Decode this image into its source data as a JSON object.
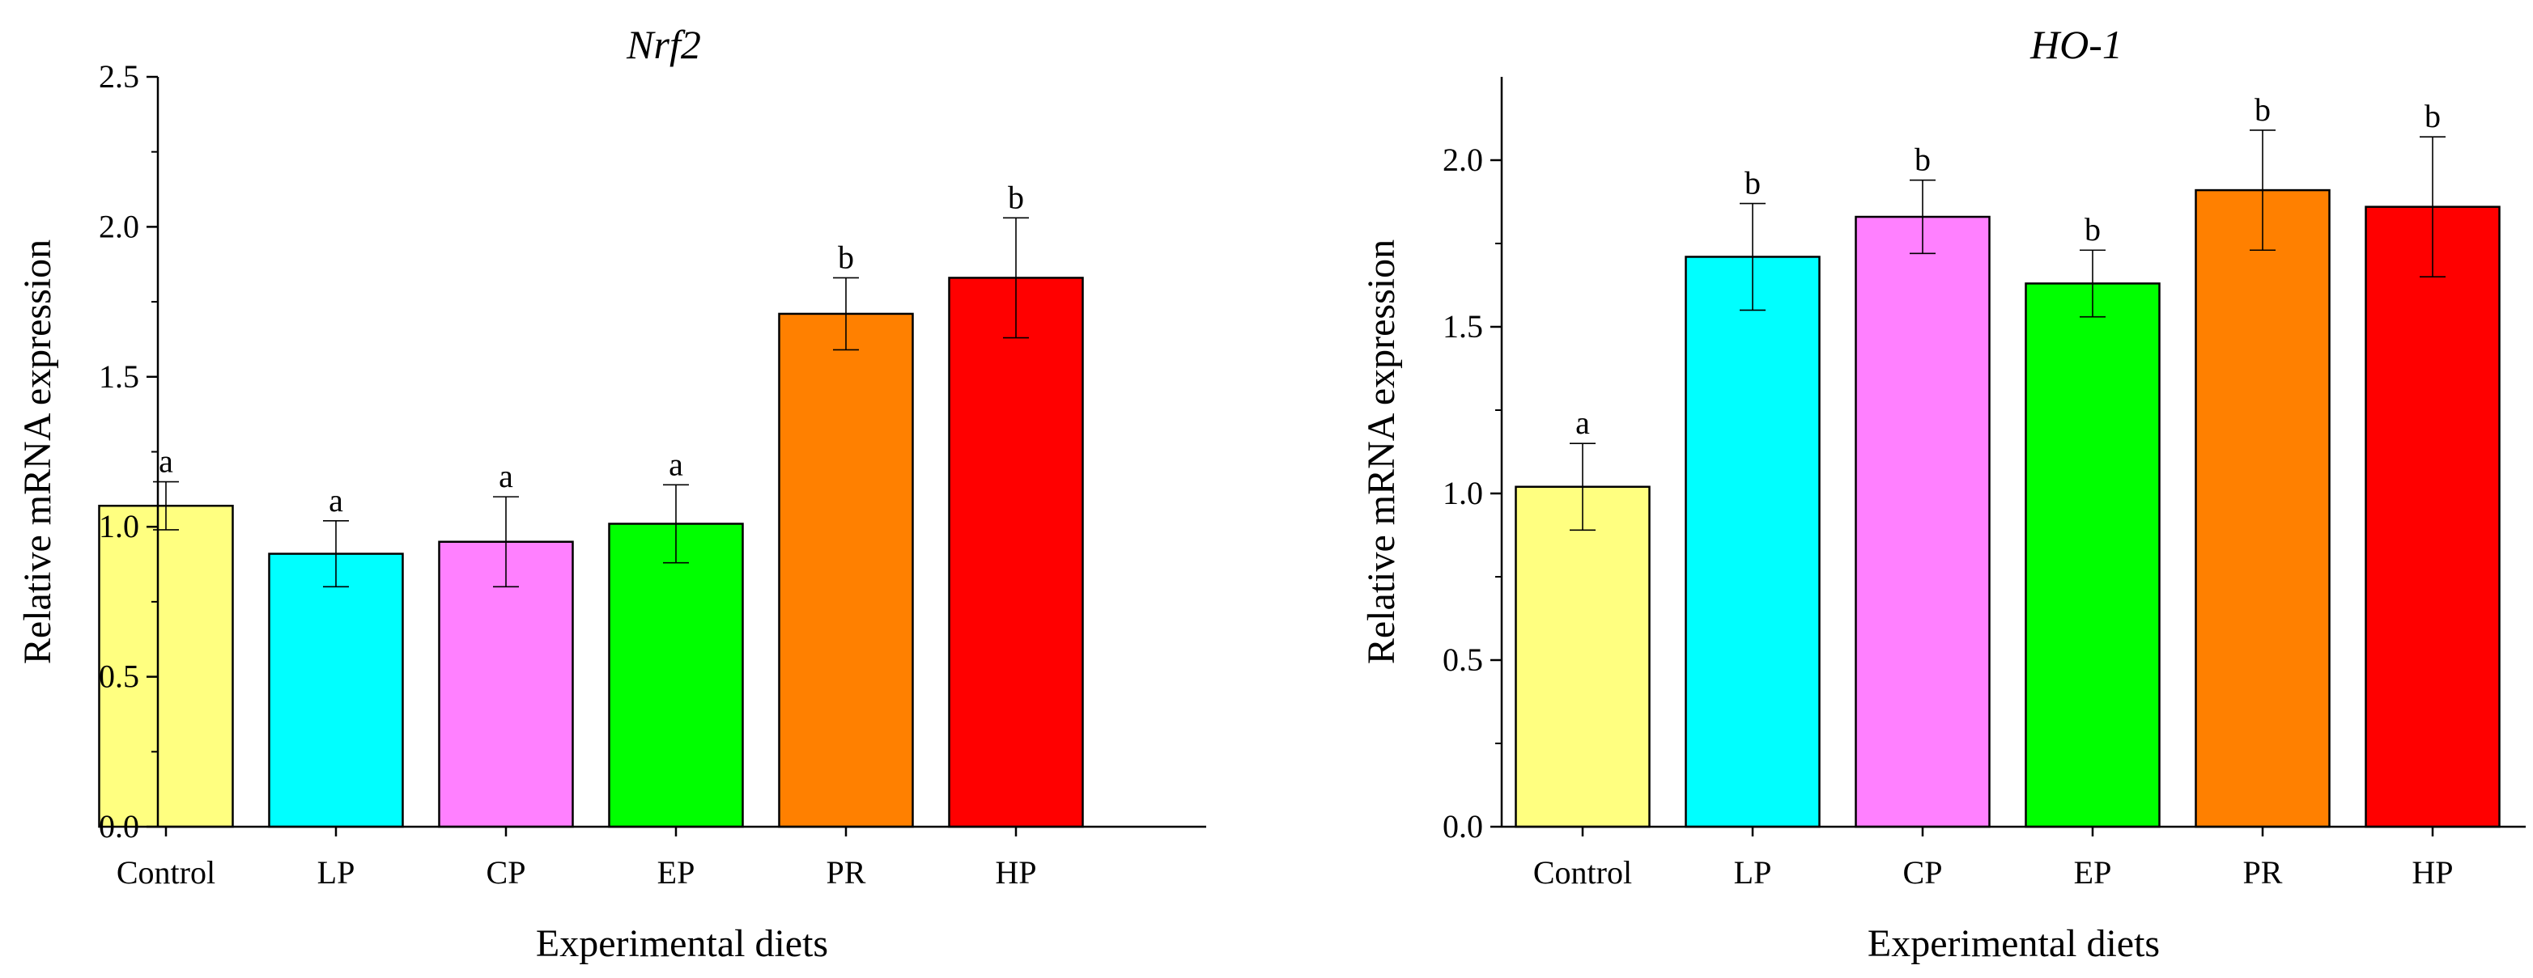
{
  "chart_data": [
    {
      "type": "bar",
      "title": "Nrf2",
      "xlabel": "Experimental diets",
      "ylabel": "Relative mRNA expression",
      "categories": [
        "Control",
        "LP",
        "CP",
        "EP",
        "PR",
        "HP"
      ],
      "values": [
        1.07,
        0.91,
        0.95,
        1.01,
        1.71,
        1.83
      ],
      "errors": [
        0.08,
        0.11,
        0.15,
        0.13,
        0.12,
        0.2
      ],
      "significance": [
        "a",
        "a",
        "a",
        "a",
        "b",
        "b"
      ],
      "colors": [
        "#FFFF80",
        "#00FFFF",
        "#FF80FF",
        "#00FF00",
        "#FF8000",
        "#FF0000"
      ],
      "ylim": [
        0,
        2.5
      ],
      "yticks": [
        "0.0",
        "0.5",
        "1.0",
        "1.5",
        "2.0",
        "2.5"
      ]
    },
    {
      "type": "bar",
      "title": "HO-1",
      "xlabel": "Experimental diets",
      "ylabel": "Relative mRNA expression",
      "categories": [
        "Control",
        "LP",
        "CP",
        "EP",
        "PR",
        "HP"
      ],
      "values": [
        1.02,
        1.71,
        1.83,
        1.63,
        1.91,
        1.86
      ],
      "errors": [
        0.13,
        0.16,
        0.11,
        0.1,
        0.18,
        0.21
      ],
      "significance": [
        "a",
        "b",
        "b",
        "b",
        "b",
        "b"
      ],
      "colors": [
        "#FFFF80",
        "#00FFFF",
        "#FF80FF",
        "#00FF00",
        "#FF8000",
        "#FF0000"
      ],
      "ylim": [
        0,
        2.25
      ],
      "yticks": [
        "0.0",
        "0.5",
        "1.0",
        "1.5",
        "2.0"
      ]
    }
  ]
}
